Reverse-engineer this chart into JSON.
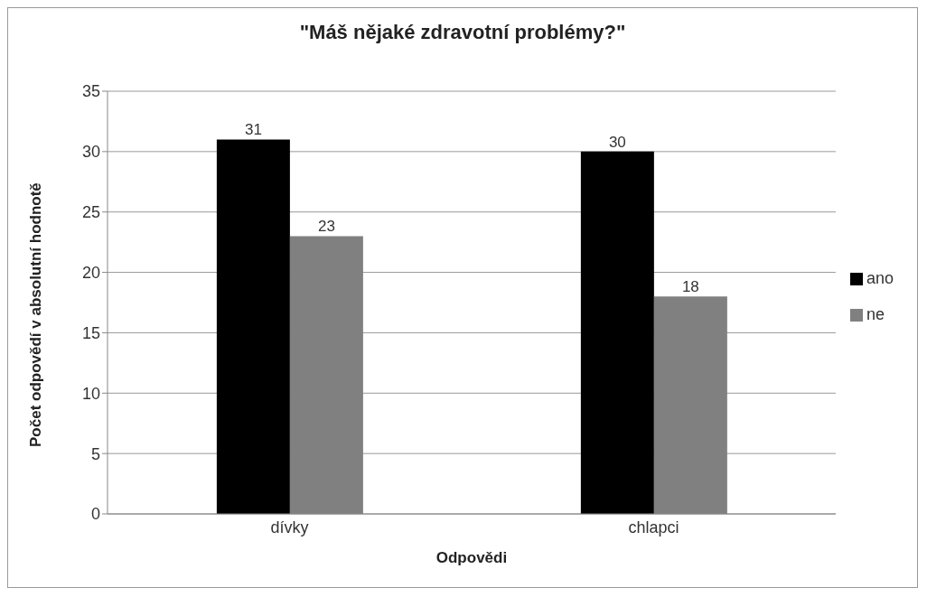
{
  "chart_data": {
    "type": "bar",
    "title": "\"Máš nějaké zdravotní problémy?\"",
    "xlabel": "Odpovědi",
    "ylabel": "Počet odpovědí v absolutní hodnotě",
    "categories": [
      "dívky",
      "chlapci"
    ],
    "series": [
      {
        "name": "ano",
        "color": "#000000",
        "values": [
          31,
          30
        ]
      },
      {
        "name": "ne",
        "color": "#808080",
        "values": [
          23,
          18
        ]
      }
    ],
    "ylim": [
      0,
      35
    ],
    "yticks": [
      0,
      5,
      10,
      15,
      20,
      25,
      30,
      35
    ],
    "grid": "y",
    "legend": "right",
    "data_labels": true
  }
}
